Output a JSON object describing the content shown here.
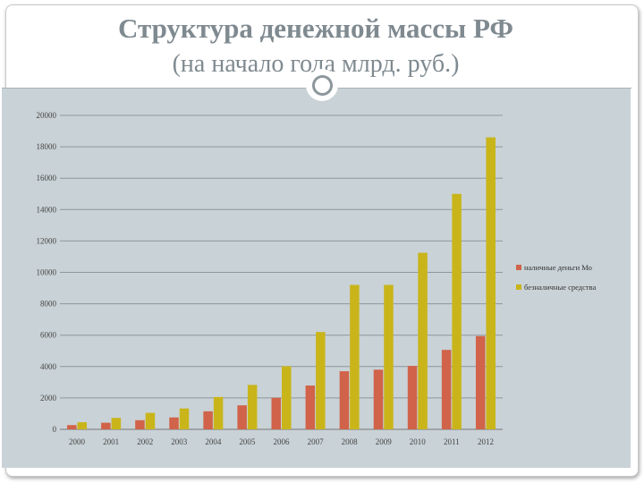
{
  "slide": {
    "title": "Структура денежной массы РФ",
    "subtitle": "(на начало года млрд. руб.)"
  },
  "chart_data": {
    "type": "bar",
    "categories": [
      "2000",
      "2001",
      "2002",
      "2003",
      "2004",
      "2005",
      "2006",
      "2007",
      "2008",
      "2009",
      "2010",
      "2011",
      "2012"
    ],
    "series": [
      {
        "name": "наличные деньги Мо",
        "color": "#d0634a",
        "values": [
          270,
          420,
          580,
          760,
          1150,
          1530,
          2010,
          2790,
          3700,
          3800,
          4040,
          5060,
          5940
        ]
      },
      {
        "name": "безналичные средства",
        "color": "#c9b51a",
        "values": [
          450,
          730,
          1050,
          1330,
          2060,
          2830,
          4020,
          6200,
          9200,
          9200,
          11250,
          15000,
          18600
        ]
      }
    ],
    "yticks": [
      "20000",
      "18000",
      "16000",
      "14000",
      "12000",
      "10000",
      "8000",
      "6000",
      "4000",
      "2000",
      "0"
    ],
    "ylim": [
      0,
      20000
    ],
    "grid": true,
    "legend_position": "right"
  }
}
